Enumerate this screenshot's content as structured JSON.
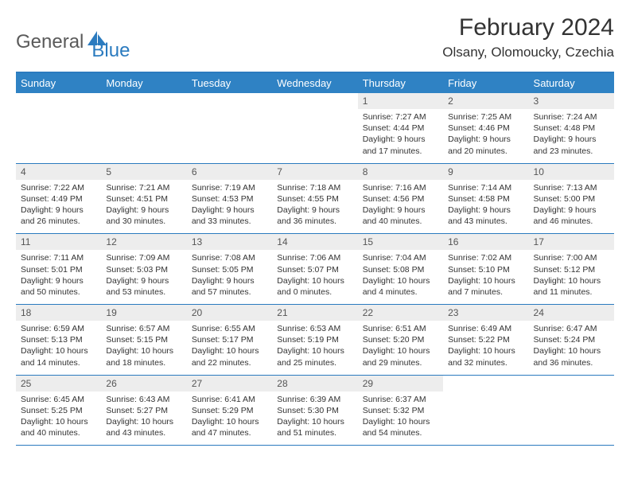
{
  "brand": {
    "part1": "General",
    "part2": "Blue"
  },
  "title": "February 2024",
  "location": "Olsany, Olomoucky, Czechia",
  "colors": {
    "header_bg": "#2f82c4",
    "accent": "#2b7bbf",
    "daynum_bg": "#ededed",
    "text": "#333333",
    "logo_gray": "#5a5a5a"
  },
  "fonts": {
    "title_size": 30,
    "location_size": 17,
    "header_size": 13,
    "body_size": 10.5
  },
  "weekdays": [
    "Sunday",
    "Monday",
    "Tuesday",
    "Wednesday",
    "Thursday",
    "Friday",
    "Saturday"
  ],
  "weeks": [
    [
      null,
      null,
      null,
      null,
      {
        "d": "1",
        "sr": "Sunrise: 7:27 AM",
        "ss": "Sunset: 4:44 PM",
        "dl1": "Daylight: 9 hours",
        "dl2": "and 17 minutes."
      },
      {
        "d": "2",
        "sr": "Sunrise: 7:25 AM",
        "ss": "Sunset: 4:46 PM",
        "dl1": "Daylight: 9 hours",
        "dl2": "and 20 minutes."
      },
      {
        "d": "3",
        "sr": "Sunrise: 7:24 AM",
        "ss": "Sunset: 4:48 PM",
        "dl1": "Daylight: 9 hours",
        "dl2": "and 23 minutes."
      }
    ],
    [
      {
        "d": "4",
        "sr": "Sunrise: 7:22 AM",
        "ss": "Sunset: 4:49 PM",
        "dl1": "Daylight: 9 hours",
        "dl2": "and 26 minutes."
      },
      {
        "d": "5",
        "sr": "Sunrise: 7:21 AM",
        "ss": "Sunset: 4:51 PM",
        "dl1": "Daylight: 9 hours",
        "dl2": "and 30 minutes."
      },
      {
        "d": "6",
        "sr": "Sunrise: 7:19 AM",
        "ss": "Sunset: 4:53 PM",
        "dl1": "Daylight: 9 hours",
        "dl2": "and 33 minutes."
      },
      {
        "d": "7",
        "sr": "Sunrise: 7:18 AM",
        "ss": "Sunset: 4:55 PM",
        "dl1": "Daylight: 9 hours",
        "dl2": "and 36 minutes."
      },
      {
        "d": "8",
        "sr": "Sunrise: 7:16 AM",
        "ss": "Sunset: 4:56 PM",
        "dl1": "Daylight: 9 hours",
        "dl2": "and 40 minutes."
      },
      {
        "d": "9",
        "sr": "Sunrise: 7:14 AM",
        "ss": "Sunset: 4:58 PM",
        "dl1": "Daylight: 9 hours",
        "dl2": "and 43 minutes."
      },
      {
        "d": "10",
        "sr": "Sunrise: 7:13 AM",
        "ss": "Sunset: 5:00 PM",
        "dl1": "Daylight: 9 hours",
        "dl2": "and 46 minutes."
      }
    ],
    [
      {
        "d": "11",
        "sr": "Sunrise: 7:11 AM",
        "ss": "Sunset: 5:01 PM",
        "dl1": "Daylight: 9 hours",
        "dl2": "and 50 minutes."
      },
      {
        "d": "12",
        "sr": "Sunrise: 7:09 AM",
        "ss": "Sunset: 5:03 PM",
        "dl1": "Daylight: 9 hours",
        "dl2": "and 53 minutes."
      },
      {
        "d": "13",
        "sr": "Sunrise: 7:08 AM",
        "ss": "Sunset: 5:05 PM",
        "dl1": "Daylight: 9 hours",
        "dl2": "and 57 minutes."
      },
      {
        "d": "14",
        "sr": "Sunrise: 7:06 AM",
        "ss": "Sunset: 5:07 PM",
        "dl1": "Daylight: 10 hours",
        "dl2": "and 0 minutes."
      },
      {
        "d": "15",
        "sr": "Sunrise: 7:04 AM",
        "ss": "Sunset: 5:08 PM",
        "dl1": "Daylight: 10 hours",
        "dl2": "and 4 minutes."
      },
      {
        "d": "16",
        "sr": "Sunrise: 7:02 AM",
        "ss": "Sunset: 5:10 PM",
        "dl1": "Daylight: 10 hours",
        "dl2": "and 7 minutes."
      },
      {
        "d": "17",
        "sr": "Sunrise: 7:00 AM",
        "ss": "Sunset: 5:12 PM",
        "dl1": "Daylight: 10 hours",
        "dl2": "and 11 minutes."
      }
    ],
    [
      {
        "d": "18",
        "sr": "Sunrise: 6:59 AM",
        "ss": "Sunset: 5:13 PM",
        "dl1": "Daylight: 10 hours",
        "dl2": "and 14 minutes."
      },
      {
        "d": "19",
        "sr": "Sunrise: 6:57 AM",
        "ss": "Sunset: 5:15 PM",
        "dl1": "Daylight: 10 hours",
        "dl2": "and 18 minutes."
      },
      {
        "d": "20",
        "sr": "Sunrise: 6:55 AM",
        "ss": "Sunset: 5:17 PM",
        "dl1": "Daylight: 10 hours",
        "dl2": "and 22 minutes."
      },
      {
        "d": "21",
        "sr": "Sunrise: 6:53 AM",
        "ss": "Sunset: 5:19 PM",
        "dl1": "Daylight: 10 hours",
        "dl2": "and 25 minutes."
      },
      {
        "d": "22",
        "sr": "Sunrise: 6:51 AM",
        "ss": "Sunset: 5:20 PM",
        "dl1": "Daylight: 10 hours",
        "dl2": "and 29 minutes."
      },
      {
        "d": "23",
        "sr": "Sunrise: 6:49 AM",
        "ss": "Sunset: 5:22 PM",
        "dl1": "Daylight: 10 hours",
        "dl2": "and 32 minutes."
      },
      {
        "d": "24",
        "sr": "Sunrise: 6:47 AM",
        "ss": "Sunset: 5:24 PM",
        "dl1": "Daylight: 10 hours",
        "dl2": "and 36 minutes."
      }
    ],
    [
      {
        "d": "25",
        "sr": "Sunrise: 6:45 AM",
        "ss": "Sunset: 5:25 PM",
        "dl1": "Daylight: 10 hours",
        "dl2": "and 40 minutes."
      },
      {
        "d": "26",
        "sr": "Sunrise: 6:43 AM",
        "ss": "Sunset: 5:27 PM",
        "dl1": "Daylight: 10 hours",
        "dl2": "and 43 minutes."
      },
      {
        "d": "27",
        "sr": "Sunrise: 6:41 AM",
        "ss": "Sunset: 5:29 PM",
        "dl1": "Daylight: 10 hours",
        "dl2": "and 47 minutes."
      },
      {
        "d": "28",
        "sr": "Sunrise: 6:39 AM",
        "ss": "Sunset: 5:30 PM",
        "dl1": "Daylight: 10 hours",
        "dl2": "and 51 minutes."
      },
      {
        "d": "29",
        "sr": "Sunrise: 6:37 AM",
        "ss": "Sunset: 5:32 PM",
        "dl1": "Daylight: 10 hours",
        "dl2": "and 54 minutes."
      },
      null,
      null
    ]
  ]
}
